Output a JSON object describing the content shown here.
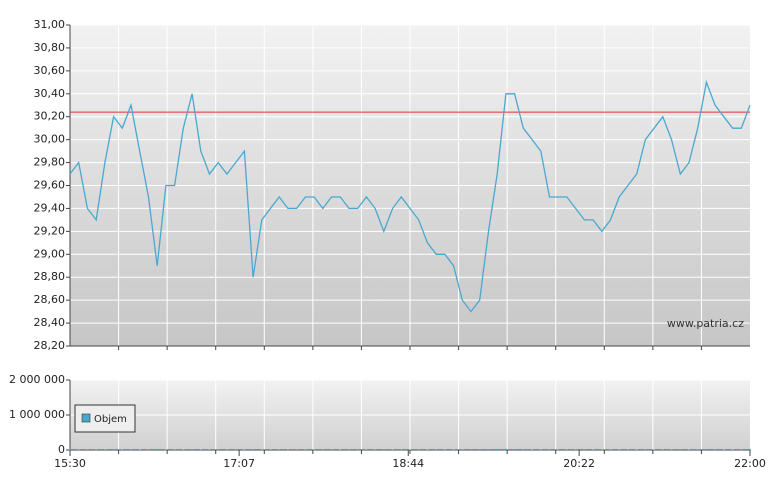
{
  "chart_data": [
    {
      "type": "line",
      "x": [
        "15:30",
        "15:35",
        "15:40",
        "15:45",
        "15:50",
        "15:55",
        "16:00",
        "16:05",
        "16:10",
        "16:15",
        "16:20",
        "16:25",
        "16:30",
        "16:35",
        "16:40",
        "16:45",
        "16:50",
        "16:55",
        "17:00",
        "17:05",
        "17:10",
        "17:15",
        "17:20",
        "17:25",
        "17:30",
        "17:35",
        "17:40",
        "17:45",
        "17:50",
        "17:55",
        "18:00",
        "18:05",
        "18:10",
        "18:15",
        "18:20",
        "18:25",
        "18:30",
        "18:35",
        "18:40",
        "18:45",
        "18:50",
        "18:55",
        "19:00",
        "19:05",
        "19:10",
        "19:15",
        "19:20",
        "19:25",
        "19:30",
        "19:35",
        "19:40",
        "19:45",
        "19:50",
        "19:55",
        "20:00",
        "20:05",
        "20:10",
        "20:15",
        "20:20",
        "20:25",
        "20:30",
        "20:35",
        "20:40",
        "20:45",
        "20:50",
        "20:55",
        "21:00",
        "21:05",
        "21:10",
        "21:15",
        "21:20",
        "21:25",
        "21:30",
        "21:35",
        "21:40",
        "21:45",
        "21:50",
        "21:55",
        "22:00"
      ],
      "series": [
        {
          "color": "#4aa8d0",
          "values": [
            29.7,
            29.8,
            29.4,
            29.3,
            29.8,
            30.2,
            30.1,
            30.3,
            29.9,
            29.5,
            28.9,
            29.6,
            29.6,
            30.1,
            30.4,
            29.9,
            29.7,
            29.8,
            29.7,
            29.8,
            29.9,
            28.8,
            29.3,
            29.4,
            29.5,
            29.4,
            29.4,
            29.5,
            29.5,
            29.4,
            29.5,
            29.5,
            29.4,
            29.4,
            29.5,
            29.4,
            29.2,
            29.4,
            29.5,
            29.4,
            29.3,
            29.1,
            29.0,
            29.0,
            28.9,
            28.6,
            28.5,
            28.6,
            29.2,
            29.7,
            30.4,
            30.4,
            30.1,
            30.0,
            29.9,
            29.5,
            29.5,
            29.5,
            29.4,
            29.3,
            29.3,
            29.2,
            29.3,
            29.5,
            29.6,
            29.7,
            30.0,
            30.1,
            30.2,
            30.0,
            29.7,
            29.8,
            30.1,
            30.5,
            30.3,
            30.2,
            30.1,
            30.1,
            30.3
          ]
        }
      ],
      "ref_line": {
        "value": 30.24,
        "color": "#e03030"
      },
      "xlim": [
        "15:30",
        "22:00"
      ],
      "ylim": [
        28.2,
        31.0
      ],
      "yticks": [
        {
          "value": 28.2,
          "label": "28,20"
        },
        {
          "value": 28.4,
          "label": "28,40"
        },
        {
          "value": 28.6,
          "label": "28,60"
        },
        {
          "value": 28.8,
          "label": "28,80"
        },
        {
          "value": 29.0,
          "label": "29,00"
        },
        {
          "value": 29.2,
          "label": "29,20"
        },
        {
          "value": 29.4,
          "label": "29,40"
        },
        {
          "value": 29.6,
          "label": "29,60"
        },
        {
          "value": 29.8,
          "label": "29,80"
        },
        {
          "value": 30.0,
          "label": "30,00"
        },
        {
          "value": 30.2,
          "label": "30,20"
        },
        {
          "value": 30.4,
          "label": "30,40"
        },
        {
          "value": 30.6,
          "label": "30,60"
        },
        {
          "value": 30.8,
          "label": "30,80"
        },
        {
          "value": 31.0,
          "label": "31,00"
        }
      ],
      "grid": true,
      "annotation": "www.patria.cz"
    },
    {
      "type": "bar",
      "x": [
        "15:30",
        "15:35",
        "15:40",
        "15:45",
        "15:50",
        "15:55",
        "16:00",
        "16:05",
        "16:10",
        "16:15",
        "16:20",
        "16:25",
        "16:30",
        "16:35",
        "16:40",
        "16:45",
        "16:50",
        "16:55",
        "17:00",
        "17:05",
        "17:10",
        "17:15",
        "17:20",
        "17:25",
        "17:30",
        "17:35",
        "17:40",
        "17:45",
        "17:50",
        "17:55",
        "18:00",
        "18:05",
        "18:10",
        "18:15",
        "18:20",
        "18:25",
        "18:30",
        "18:35",
        "18:40",
        "18:45",
        "18:50",
        "18:55",
        "19:00",
        "19:05",
        "19:10",
        "19:15",
        "19:20",
        "19:25",
        "19:30",
        "19:35",
        "19:40",
        "19:45",
        "19:50",
        "19:55",
        "20:00",
        "20:05",
        "20:10",
        "20:15",
        "20:20",
        "20:25",
        "20:30",
        "20:35",
        "20:40",
        "20:45",
        "20:50",
        "20:55",
        "21:00",
        "21:05",
        "21:10",
        "21:15",
        "21:20",
        "21:25",
        "21:30",
        "21:35",
        "21:40",
        "21:45",
        "21:50",
        "21:55",
        "22:00"
      ],
      "series": [
        {
          "name": "Objem",
          "color": "#4aa8d0",
          "values": [
            20000,
            15000,
            10000,
            15000,
            20000,
            25000,
            15000,
            20000,
            15000,
            10000,
            30000,
            15000,
            10000,
            15000,
            20000,
            15000,
            10000,
            10000,
            15000,
            10000,
            15000,
            25000,
            15000,
            10000,
            10000,
            15000,
            10000,
            10000,
            15000,
            10000,
            10000,
            15000,
            10000,
            10000,
            15000,
            10000,
            20000,
            15000,
            10000,
            15000,
            10000,
            15000,
            20000,
            15000,
            15000,
            20000,
            25000,
            20000,
            25000,
            30000,
            35000,
            25000,
            20000,
            15000,
            15000,
            20000,
            15000,
            10000,
            15000,
            20000,
            15000,
            10000,
            15000,
            15000,
            20000,
            15000,
            20000,
            15000,
            20000,
            15000,
            20000,
            15000,
            20000,
            25000,
            20000,
            15000,
            15000,
            20000,
            30000
          ]
        }
      ],
      "xlim": [
        "15:30",
        "22:00"
      ],
      "xticks": [
        "15:30",
        "17:07",
        "18:44",
        "20:22",
        "22:00"
      ],
      "ylim": [
        0,
        2000000
      ],
      "yticks": [
        0,
        {
          "value": 1000000,
          "label": "1 000 000"
        },
        {
          "value": 2000000,
          "label": "2 000 000"
        }
      ],
      "grid": true
    }
  ]
}
